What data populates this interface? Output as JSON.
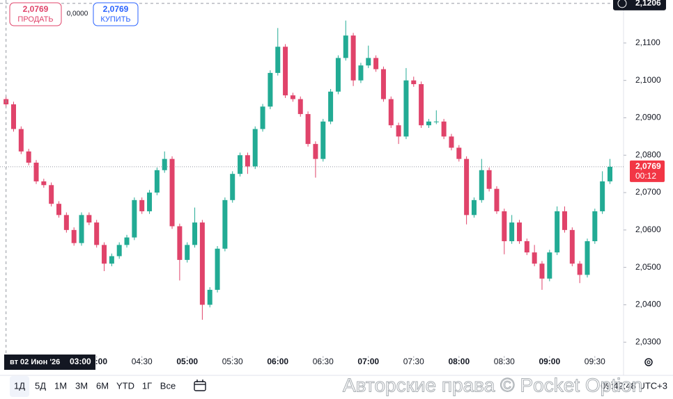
{
  "header": {
    "sell": {
      "price": "2,0769",
      "label": "ПРОДАТЬ"
    },
    "spread": "0,0000",
    "buy": {
      "price": "2,0769",
      "label": "КУПИТЬ"
    }
  },
  "chart_data": {
    "type": "candlestick",
    "x": [
      "03:00",
      "03:05",
      "03:10",
      "03:15",
      "03:20",
      "03:25",
      "03:30",
      "03:35",
      "03:40",
      "03:45",
      "03:50",
      "03:55",
      "04:00",
      "04:05",
      "04:10",
      "04:15",
      "04:20",
      "04:25",
      "04:30",
      "04:35",
      "04:40",
      "04:45",
      "04:50",
      "04:55",
      "05:00",
      "05:05",
      "05:10",
      "05:15",
      "05:20",
      "05:25",
      "05:30",
      "05:35",
      "05:40",
      "05:45",
      "05:50",
      "05:55",
      "06:00",
      "06:05",
      "06:10",
      "06:15",
      "06:20",
      "06:25",
      "06:30",
      "06:35",
      "06:40",
      "06:45",
      "06:50",
      "06:55",
      "07:00",
      "07:05",
      "07:10",
      "07:15",
      "07:20",
      "07:25",
      "07:30",
      "07:35",
      "07:40",
      "07:45",
      "07:50",
      "07:55",
      "08:00",
      "08:05",
      "08:10",
      "08:15",
      "08:20",
      "08:25",
      "08:30",
      "08:35",
      "08:40",
      "08:45",
      "08:50",
      "08:55",
      "09:00",
      "09:05",
      "09:10",
      "09:15",
      "09:20",
      "09:25",
      "09:30",
      "09:35",
      "09:40"
    ],
    "open": [
      2.095,
      2.0936,
      2.087,
      2.081,
      2.078,
      2.073,
      2.072,
      2.067,
      2.064,
      2.06,
      2.0565,
      2.064,
      2.062,
      2.056,
      2.051,
      2.053,
      2.056,
      2.058,
      2.068,
      2.065,
      2.07,
      2.076,
      2.079,
      2.061,
      2.052,
      2.056,
      2.062,
      2.04,
      2.044,
      2.055,
      2.068,
      2.075,
      2.08,
      2.077,
      2.087,
      2.093,
      2.102,
      2.109,
      2.096,
      2.095,
      2.091,
      2.083,
      2.079,
      2.089,
      2.097,
      2.106,
      2.112,
      2.1,
      2.104,
      2.106,
      2.103,
      2.095,
      2.088,
      2.085,
      2.1,
      2.099,
      2.088,
      2.089,
      2.089,
      2.085,
      2.082,
      2.079,
      2.064,
      2.068,
      2.076,
      2.071,
      2.065,
      2.057,
      2.062,
      2.057,
      2.054,
      2.051,
      2.047,
      2.054,
      2.065,
      2.06,
      2.051,
      2.048,
      2.057,
      2.065,
      2.073
    ],
    "high": [
      2.0957,
      2.0943,
      2.0877,
      2.0817,
      2.0787,
      2.0737,
      2.0727,
      2.0677,
      2.0647,
      2.0607,
      2.0647,
      2.0647,
      2.0627,
      2.0567,
      2.0537,
      2.0567,
      2.0587,
      2.0687,
      2.0687,
      2.0707,
      2.0767,
      2.081,
      2.0797,
      2.0617,
      2.0567,
      2.066,
      2.0627,
      2.0447,
      2.0557,
      2.0687,
      2.0757,
      2.0807,
      2.0807,
      2.0877,
      2.0937,
      2.1027,
      2.114,
      2.1097,
      2.0967,
      2.0957,
      2.0917,
      2.0837,
      2.0897,
      2.0977,
      2.1067,
      2.116,
      2.1127,
      2.1047,
      2.1093,
      2.1067,
      2.1037,
      2.0957,
      2.0887,
      2.1033,
      2.101,
      2.0997,
      2.0897,
      2.092,
      2.0897,
      2.0857,
      2.0827,
      2.0797,
      2.0687,
      2.079,
      2.0767,
      2.0717,
      2.0657,
      2.064,
      2.0627,
      2.0577,
      2.056,
      2.0517,
      2.0547,
      2.0663,
      2.0663,
      2.0607,
      2.0517,
      2.0577,
      2.0657,
      2.0757,
      2.079
    ],
    "low": [
      2.0929,
      2.0863,
      2.0803,
      2.0773,
      2.0723,
      2.0713,
      2.0663,
      2.0633,
      2.0593,
      2.0558,
      2.0558,
      2.0613,
      2.0553,
      2.049,
      2.0503,
      2.0523,
      2.0553,
      2.0573,
      2.0643,
      2.0643,
      2.0693,
      2.0753,
      2.0603,
      2.0465,
      2.0513,
      2.0553,
      2.036,
      2.0393,
      2.0433,
      2.0543,
      2.0673,
      2.0743,
      2.075,
      2.0763,
      2.0863,
      2.0923,
      2.1013,
      2.0953,
      2.0943,
      2.0903,
      2.0823,
      2.074,
      2.0783,
      2.0883,
      2.0963,
      2.1053,
      2.0985,
      2.0993,
      2.1033,
      2.1023,
      2.0943,
      2.0873,
      2.083,
      2.0843,
      2.0983,
      2.0873,
      2.0873,
      2.0883,
      2.0843,
      2.0813,
      2.0783,
      2.0615,
      2.0633,
      2.0673,
      2.0703,
      2.0643,
      2.0535,
      2.0563,
      2.0563,
      2.0533,
      2.0503,
      2.044,
      2.0463,
      2.0533,
      2.0593,
      2.0503,
      2.0458,
      2.0473,
      2.0563,
      2.0643,
      2.0723
    ],
    "close": [
      2.0936,
      2.087,
      2.081,
      2.078,
      2.073,
      2.072,
      2.067,
      2.064,
      2.06,
      2.0565,
      2.064,
      2.062,
      2.056,
      2.051,
      2.053,
      2.056,
      2.058,
      2.068,
      2.065,
      2.07,
      2.076,
      2.079,
      2.061,
      2.052,
      2.056,
      2.062,
      2.04,
      2.044,
      2.055,
      2.068,
      2.075,
      2.08,
      2.077,
      2.087,
      2.093,
      2.102,
      2.109,
      2.096,
      2.095,
      2.091,
      2.083,
      2.079,
      2.089,
      2.097,
      2.106,
      2.112,
      2.1,
      2.104,
      2.106,
      2.103,
      2.095,
      2.088,
      2.085,
      2.1,
      2.099,
      2.088,
      2.089,
      2.089,
      2.085,
      2.082,
      2.079,
      2.064,
      2.068,
      2.076,
      2.071,
      2.065,
      2.057,
      2.062,
      2.057,
      2.054,
      2.051,
      2.047,
      2.054,
      2.065,
      2.06,
      2.051,
      2.048,
      2.057,
      2.065,
      2.073,
      2.0769
    ],
    "up_color": "#22ab94",
    "down_color": "#e0436a",
    "xlim": [
      "02:56",
      "09:49"
    ],
    "xticks": [
      "04:00",
      "04:30",
      "05:00",
      "05:30",
      "06:00",
      "06:30",
      "07:00",
      "07:30",
      "08:00",
      "08:30",
      "09:00",
      "09:30"
    ],
    "ylim": [
      2.0267,
      2.1215
    ],
    "yticks": [
      {
        "value": 2.03,
        "label": "2,0300"
      },
      {
        "value": 2.04,
        "label": "2,0400"
      },
      {
        "value": 2.05,
        "label": "2,0500"
      },
      {
        "value": 2.06,
        "label": "2,0600"
      },
      {
        "value": 2.07,
        "label": "2,0700"
      },
      {
        "value": 2.08,
        "label": "2,0800"
      },
      {
        "value": 2.09,
        "label": "2,0900"
      },
      {
        "value": 2.1,
        "label": "2,1000"
      },
      {
        "value": 2.11,
        "label": "2,1100"
      }
    ],
    "grid": false,
    "crosshair": {
      "date": "вт 02 Июн '26",
      "time": "03:00",
      "price": {
        "value": 2.1206,
        "label": "2,1206"
      }
    },
    "last_price": {
      "value": 2.0769,
      "label": "2,0769",
      "countdown": "00:12"
    }
  },
  "toolbar": {
    "ranges": [
      "1Д",
      "5Д",
      "1М",
      "3М",
      "6М",
      "YTD",
      "1Г",
      "Все"
    ],
    "clock": "09:42:48 UTC+3"
  },
  "watermark": "Авторские права © Pocket Option"
}
